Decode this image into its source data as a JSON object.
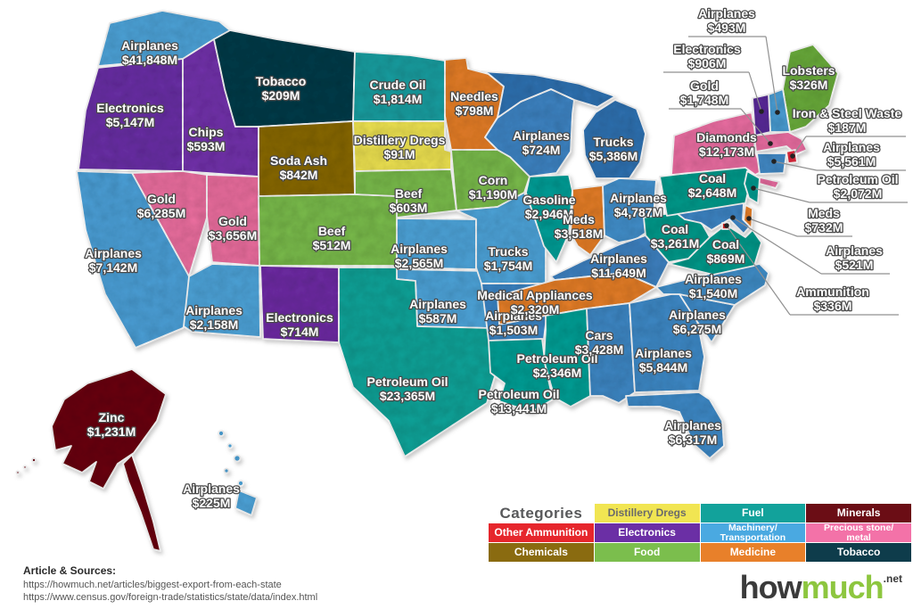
{
  "categories": {
    "distillery": {
      "label": "Distillery Dregs",
      "color": "#F1E552",
      "text_color": "#6b6b6b"
    },
    "fuel": {
      "label": "Fuel",
      "color": "#12A29B"
    },
    "minerals": {
      "label": "Minerals",
      "color": "#6B0D15"
    },
    "ammunition": {
      "label": "Other Ammunition",
      "color": "#E6262C"
    },
    "electronics": {
      "label": "Electronics",
      "color": "#6B2FA5"
    },
    "machinery": {
      "label": "Machinery/Transportation",
      "color": "#4AA9E1"
    },
    "precious": {
      "label": "Precious stone/metal",
      "color": "#F372A8"
    },
    "chemicals": {
      "label": "Chemicals",
      "color": "#8A6B10"
    },
    "food": {
      "label": "Food",
      "color": "#7BBE4D"
    },
    "medicine": {
      "label": "Medicine",
      "color": "#E8802A"
    },
    "tobacco": {
      "label": "Tobacco",
      "color": "#0E3C4B"
    }
  },
  "map": {
    "states": [
      {
        "id": "WA",
        "product": "Airplanes",
        "value": "$41,848M",
        "category": "machinery",
        "fill": "#4FA6DC"
      },
      {
        "id": "OR",
        "product": "Electronics",
        "value": "$5,147M",
        "category": "electronics",
        "fill": "#6C30A8"
      },
      {
        "id": "ID",
        "product": "Chips",
        "value": "$593M",
        "category": "electronics",
        "fill": "#7434AE"
      },
      {
        "id": "MT",
        "product": "Tobacco",
        "value": "$209M",
        "category": "tobacco",
        "fill": "#0E3C4B"
      },
      {
        "id": "WY",
        "product": "Soda Ash",
        "value": "$842M",
        "category": "chemicals",
        "fill": "#8A6B10"
      },
      {
        "id": "NV",
        "product": "Gold",
        "value": "$6,285M",
        "category": "precious",
        "fill": "#EF71A2"
      },
      {
        "id": "UT",
        "product": "Gold",
        "value": "$3,656M",
        "category": "precious",
        "fill": "#EE6FA0"
      },
      {
        "id": "CA",
        "product": "Airplanes",
        "value": "$7,142M",
        "category": "machinery",
        "fill": "#4DA2DA"
      },
      {
        "id": "AZ",
        "product": "Airplanes",
        "value": "$2,158M",
        "category": "machinery",
        "fill": "#4FA6DC"
      },
      {
        "id": "NM",
        "product": "Electronics",
        "value": "$714M",
        "category": "electronics",
        "fill": "#6F2FA6"
      },
      {
        "id": "CO",
        "product": "Beef",
        "value": "$512M",
        "category": "food",
        "fill": "#7BBE4D"
      },
      {
        "id": "ND",
        "product": "Crude Oil",
        "value": "$1,814M",
        "category": "fuel",
        "fill": "#1DA0A3"
      },
      {
        "id": "SD",
        "product": "Distillery Dregs",
        "value": "$91M",
        "category": "distillery",
        "fill": "#F1E552"
      },
      {
        "id": "NE",
        "product": "Beef",
        "value": "$603M",
        "category": "food",
        "fill": "#7BBE4D"
      },
      {
        "id": "KS",
        "product": "Airplanes",
        "value": "$2,565M",
        "category": "machinery",
        "fill": "#4FA6DC"
      },
      {
        "id": "OK",
        "product": "Airplanes",
        "value": "$587M",
        "category": "machinery",
        "fill": "#4FA6DC"
      },
      {
        "id": "TX",
        "product": "Petroleum Oil",
        "value": "$23,365M",
        "category": "fuel",
        "fill": "#12A69B"
      },
      {
        "id": "MN",
        "product": "Needles",
        "value": "$798M",
        "category": "medicine",
        "fill": "#E8802A"
      },
      {
        "id": "IA",
        "product": "Corn",
        "value": "$1,190M",
        "category": "food",
        "fill": "#7BBE4D"
      },
      {
        "id": "MO",
        "product": "Trucks",
        "value": "$1,754M",
        "category": "machinery",
        "fill": "#4FA6DC"
      },
      {
        "id": "AR",
        "product": "Airplanes",
        "value": "$1,503M",
        "category": "machinery",
        "fill": "#3E86C6"
      },
      {
        "id": "LA",
        "product": "Petroleum Oil",
        "value": "$13,441M",
        "category": "fuel",
        "fill": "#0FA198"
      },
      {
        "id": "WI",
        "product": "Airplanes",
        "value": "$724M",
        "category": "machinery",
        "fill": "#3F86C6"
      },
      {
        "id": "MI",
        "product": "Trucks",
        "value": "$5,386M",
        "category": "machinery",
        "fill": "#3273B4"
      },
      {
        "id": "IL",
        "product": "Gasoline",
        "value": "$2,946M",
        "category": "fuel",
        "fill": "#0FA09A"
      },
      {
        "id": "IN",
        "product": "Meds",
        "value": "$3,518M",
        "category": "medicine",
        "fill": "#E8802A"
      },
      {
        "id": "OH",
        "product": "Airplanes",
        "value": "$4,787M",
        "category": "machinery",
        "fill": "#4592CE"
      },
      {
        "id": "KY",
        "product": "Airplanes",
        "value": "$11,649M",
        "category": "machinery",
        "fill": "#3F83C3"
      },
      {
        "id": "TN",
        "product": "Medical Appliances",
        "value": "$2,320M",
        "category": "medicine",
        "fill": "#E8802A"
      },
      {
        "id": "MS",
        "product": "Petroleum Oil",
        "value": "$2,346M",
        "category": "fuel",
        "fill": "#0FA198"
      },
      {
        "id": "AL",
        "product": "Cars",
        "value": "$3,428M",
        "category": "machinery",
        "fill": "#4189C7"
      },
      {
        "id": "GA",
        "product": "Airplanes",
        "value": "$5,844M",
        "category": "machinery",
        "fill": "#418BC9"
      },
      {
        "id": "FL",
        "product": "Airplanes",
        "value": "$6,317M",
        "category": "machinery",
        "fill": "#418BC9"
      },
      {
        "id": "SC",
        "product": "Airplanes",
        "value": "$6,275M",
        "category": "machinery",
        "fill": "#418BC9"
      },
      {
        "id": "NC",
        "product": "Airplanes",
        "value": "$1,540M",
        "category": "machinery",
        "fill": "#4390CA"
      },
      {
        "id": "VA",
        "product": "Coal",
        "value": "$869M",
        "category": "fuel",
        "fill": "#0C9C8D"
      },
      {
        "id": "WV",
        "product": "Coal",
        "value": "$3,261M",
        "category": "fuel",
        "fill": "#0C9C8D"
      },
      {
        "id": "PA",
        "product": "Coal",
        "value": "$2,648M",
        "category": "fuel",
        "fill": "#0C9C8D"
      },
      {
        "id": "NY",
        "product": "Diamonds",
        "value": "$12,173M",
        "category": "precious",
        "fill": "#EE6FA4"
      },
      {
        "id": "AK",
        "product": "Zinc",
        "value": "$1,231M",
        "category": "minerals",
        "fill": "#6C0E13"
      },
      {
        "id": "HI",
        "product": "Airplanes",
        "value": "$225M",
        "category": "machinery",
        "fill": "#4FA6DC"
      },
      {
        "id": "ME",
        "product": "Lobsters",
        "value": "$326M",
        "category": "food",
        "fill": "#6CAE3E"
      },
      {
        "id": "NH",
        "product": "Airplanes",
        "value": "$493M",
        "category": "machinery",
        "fill": "#4C9FD6"
      },
      {
        "id": "VT",
        "product": "Electronics",
        "value": "$906M",
        "category": "electronics",
        "fill": "#5C2D9C"
      },
      {
        "id": "MA",
        "product": "Gold",
        "value": "$1,748M",
        "category": "precious",
        "fill": "#EE6FA4"
      },
      {
        "id": "RI",
        "product": "Iron & Steel Waste",
        "value": "$187M",
        "category": "ammunition",
        "fill": "#E02A3C"
      },
      {
        "id": "CT",
        "product": "Airplanes",
        "value": "$5,561M",
        "category": "machinery",
        "fill": "#448CC9"
      },
      {
        "id": "NJ",
        "product": "Petroleum Oil",
        "value": "$2,072M",
        "category": "fuel",
        "fill": "#0E9D92"
      },
      {
        "id": "DE",
        "product": "Meds",
        "value": "$732M",
        "category": "medicine",
        "fill": "#E8802A"
      },
      {
        "id": "MD",
        "product": "Airplanes",
        "value": "$521M",
        "category": "machinery",
        "fill": "#3F87C7"
      },
      {
        "id": "DC",
        "product": "Ammunition",
        "value": "$336M",
        "category": "ammunition",
        "fill": "#E6262C"
      }
    ]
  },
  "legend": {
    "title": "Categories",
    "items": [
      {
        "lines": [
          "Distillery Dregs"
        ],
        "color": "#F1E552",
        "text_color": "#6b6b6b",
        "small": false
      },
      {
        "lines": [
          "Fuel"
        ],
        "color": "#12A29B",
        "small": false
      },
      {
        "lines": [
          "Minerals"
        ],
        "color": "#6B0D15",
        "small": false
      },
      {
        "lines": [
          "Other Ammunition"
        ],
        "color": "#E6262C",
        "small": false
      },
      {
        "lines": [
          "Electronics"
        ],
        "color": "#6B2FA5",
        "small": false
      },
      {
        "lines": [
          "Machinery/",
          "Transportation"
        ],
        "color": "#4AA9E1",
        "small": true
      },
      {
        "lines": [
          "Precious stone/",
          "metal"
        ],
        "color": "#F372A8",
        "small": true
      },
      {
        "lines": [
          "Chemicals"
        ],
        "color": "#8A6B10",
        "small": false
      },
      {
        "lines": [
          "Food"
        ],
        "color": "#7BBE4D",
        "small": false
      },
      {
        "lines": [
          "Medicine"
        ],
        "color": "#E8802A",
        "small": false
      },
      {
        "lines": [
          "Tobacco"
        ],
        "color": "#0E3C4B",
        "small": false
      }
    ]
  },
  "sources": {
    "heading": "Article & Sources:",
    "lines": [
      "https://howmuch.net/articles/biggest-export-from-each-state",
      "https://www.census.gov/foreign-trade/statistics/state/data/index.html"
    ]
  },
  "logo": {
    "how": "how",
    "much": "much",
    "net": ".net"
  }
}
